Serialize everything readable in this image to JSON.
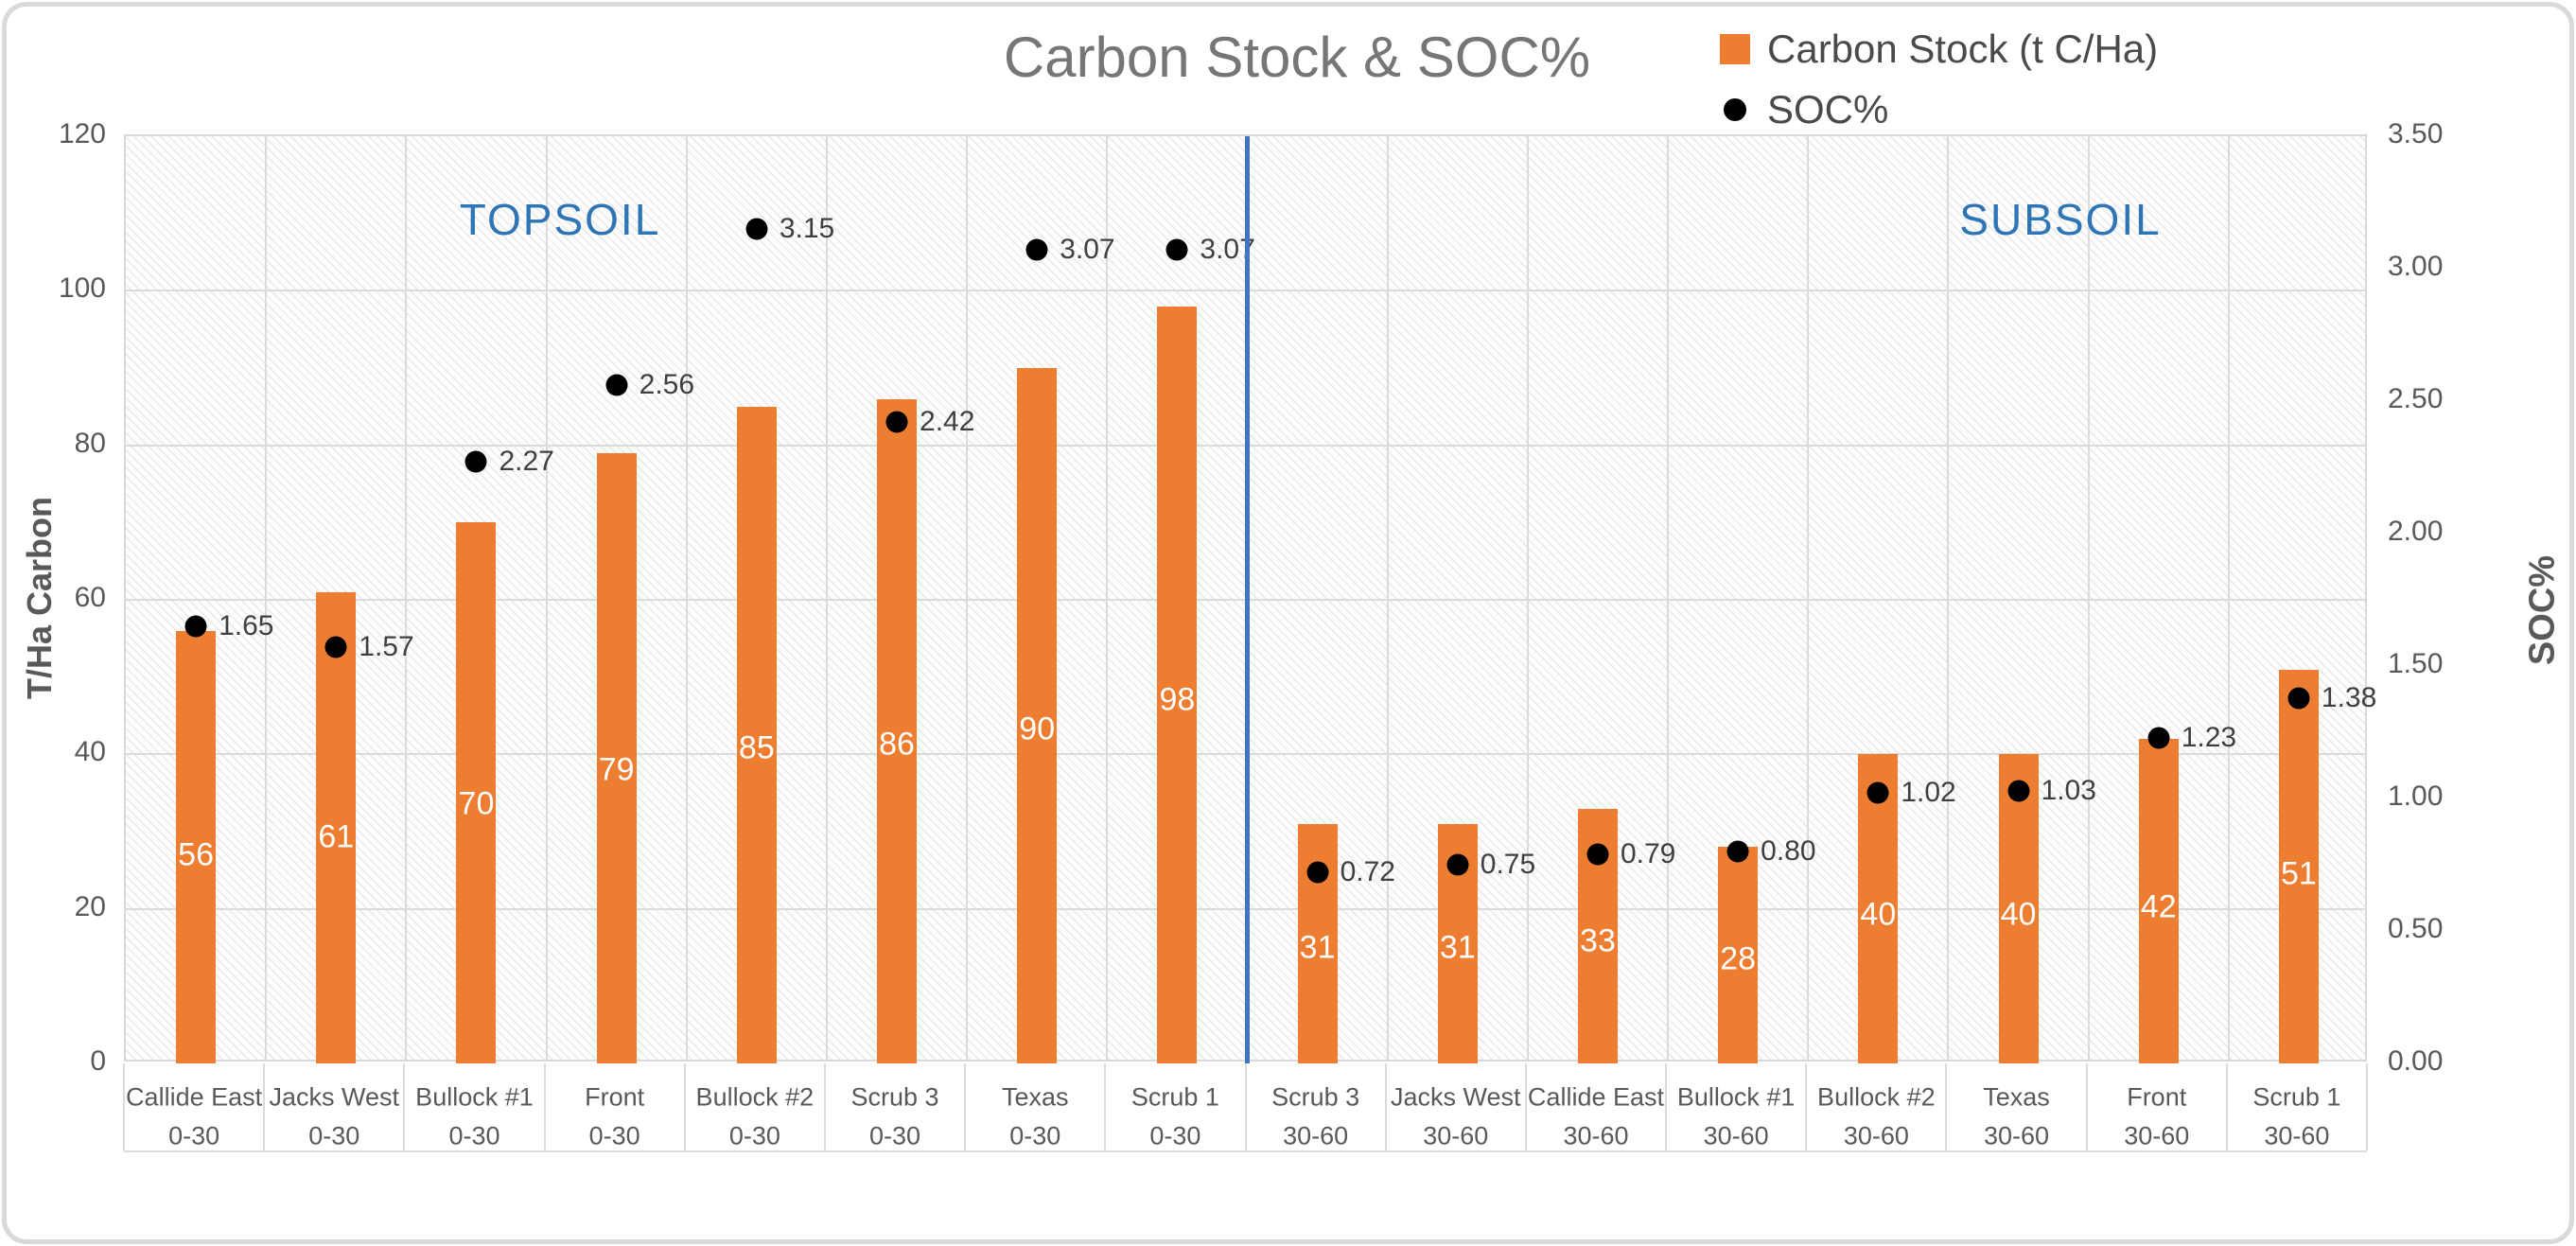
{
  "chart_data": {
    "type": "combo",
    "title": "Carbon Stock & SOC%",
    "ylabel_left": "T/Ha Carbon",
    "ylabel_right": "SOC%",
    "ylim_left": [
      0,
      120
    ],
    "ylim_right": [
      0.0,
      3.5
    ],
    "left_axis_ticks": [
      "120",
      "100",
      "80",
      "60",
      "40",
      "20",
      "0"
    ],
    "right_axis_ticks": [
      "3.50",
      "3.00",
      "2.50",
      "2.00",
      "1.50",
      "1.00",
      "0.50",
      "0.00"
    ],
    "sections": [
      {
        "label": "TOPSOIL"
      },
      {
        "label": "SUBSOIL"
      }
    ],
    "categories": [
      {
        "site": "Callide East",
        "depth": "0-30"
      },
      {
        "site": "Jacks West",
        "depth": "0-30"
      },
      {
        "site": "Bullock #1",
        "depth": "0-30"
      },
      {
        "site": "Front",
        "depth": "0-30"
      },
      {
        "site": "Bullock #2",
        "depth": "0-30"
      },
      {
        "site": "Scrub 3",
        "depth": "0-30"
      },
      {
        "site": "Texas",
        "depth": "0-30"
      },
      {
        "site": "Scrub 1",
        "depth": "0-30"
      },
      {
        "site": "Scrub 3",
        "depth": "30-60"
      },
      {
        "site": "Jacks West",
        "depth": "30-60"
      },
      {
        "site": "Callide East",
        "depth": "30-60"
      },
      {
        "site": "Bullock #1",
        "depth": "30-60"
      },
      {
        "site": "Bullock #2",
        "depth": "30-60"
      },
      {
        "site": "Texas",
        "depth": "30-60"
      },
      {
        "site": "Front",
        "depth": "30-60"
      },
      {
        "site": "Scrub 1",
        "depth": "30-60"
      }
    ],
    "series": [
      {
        "name": "Carbon Stock (t C/Ha)",
        "type": "bar",
        "axis": "left",
        "marker": "square",
        "color": "#ED7D31",
        "values": [
          56,
          61,
          70,
          79,
          85,
          86,
          90,
          98,
          31,
          31,
          33,
          28,
          40,
          40,
          42,
          51
        ],
        "labels": [
          "56",
          "61",
          "70",
          "79",
          "85",
          "86",
          "90",
          "98",
          "31",
          "31",
          "33",
          "28",
          "40",
          "40",
          "42",
          "51"
        ]
      },
      {
        "name": "SOC%",
        "type": "scatter",
        "axis": "right",
        "marker": "circle",
        "color": "#000000",
        "values": [
          1.65,
          1.57,
          2.27,
          2.56,
          3.15,
          2.42,
          3.07,
          3.07,
          0.72,
          0.75,
          0.79,
          0.8,
          1.02,
          1.03,
          1.23,
          1.38
        ],
        "labels": [
          "1.65",
          "1.57",
          "2.27",
          "2.56",
          "3.15",
          "2.42",
          "3.07",
          "3.07",
          "0.72",
          "0.75",
          "0.79",
          "0.80",
          "1.02",
          "1.03",
          "1.23",
          "1.38"
        ]
      }
    ],
    "colors": {
      "bar": "#ED7D31",
      "soc_marker": "#000000",
      "section_divider": "#4472C4",
      "section_label": "#2E75B6",
      "gridline": "#DBDBDB"
    },
    "legend_position": "top-right",
    "grid": true
  }
}
